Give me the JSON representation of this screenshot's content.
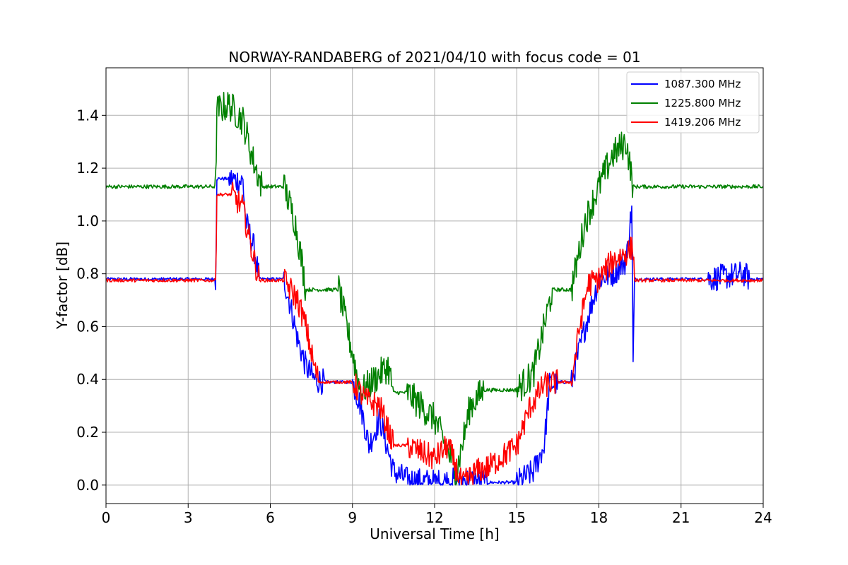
{
  "chart_data": {
    "type": "line",
    "title": "NORWAY-RANDABERG of 2021/04/10 with focus code = 01",
    "xlabel": "Universal Time [h]",
    "ylabel": "Y-factor [dB]",
    "xlim": [
      0,
      24
    ],
    "ylim": [
      -0.07,
      1.58
    ],
    "xticks": [
      0,
      3,
      6,
      9,
      12,
      15,
      18,
      21,
      24
    ],
    "yticks": [
      0.0,
      0.2,
      0.4,
      0.6,
      0.8,
      1.0,
      1.2,
      1.4
    ],
    "ytick_labels": [
      "0.0",
      "0.2",
      "0.4",
      "0.6",
      "0.8",
      "1.0",
      "1.2",
      "1.4"
    ],
    "grid": true,
    "legend_position": "top-right",
    "series": [
      {
        "name": "1087.300 MHz",
        "color": "#0000ff",
        "noise": 0.05,
        "x": [
          0,
          4.0,
          4.05,
          4.5,
          5.0,
          5.1,
          5.4,
          5.6,
          6.5,
          6.8,
          7.0,
          7.3,
          7.6,
          8.0,
          9.0,
          9.3,
          9.6,
          10.0,
          10.5,
          11.0,
          12.0,
          13.0,
          14.0,
          15.0,
          15.6,
          16.0,
          16.2,
          16.5,
          17.0,
          17.5,
          18.0,
          18.5,
          19.0,
          19.2,
          19.25,
          19.3,
          22.0,
          23.3,
          23.5,
          24
        ],
        "y": [
          0.78,
          0.78,
          1.16,
          1.16,
          1.15,
          1.0,
          0.9,
          0.78,
          0.78,
          0.65,
          0.55,
          0.45,
          0.4,
          0.39,
          0.39,
          0.3,
          0.15,
          0.25,
          0.05,
          0.02,
          0.01,
          0.02,
          0.01,
          0.01,
          0.05,
          0.15,
          0.38,
          0.39,
          0.39,
          0.6,
          0.78,
          0.8,
          0.85,
          1.05,
          0.45,
          0.78,
          0.78,
          0.8,
          0.78,
          0.78
        ]
      },
      {
        "name": "1225.800 MHz",
        "color": "#008000",
        "noise": 0.06,
        "x": [
          0,
          4.0,
          4.05,
          4.5,
          5.0,
          5.4,
          5.7,
          6.5,
          6.9,
          7.1,
          7.3,
          7.6,
          8.5,
          9.0,
          9.3,
          10.3,
          10.5,
          11.0,
          12.0,
          12.8,
          13.3,
          13.8,
          15.0,
          15.6,
          16.0,
          16.3,
          17.0,
          17.5,
          18.0,
          18.5,
          19.0,
          19.25,
          19.3,
          20.0,
          24
        ],
        "y": [
          1.13,
          1.13,
          1.42,
          1.44,
          1.38,
          1.22,
          1.13,
          1.13,
          1.0,
          0.88,
          0.74,
          0.74,
          0.74,
          0.5,
          0.35,
          0.45,
          0.35,
          0.35,
          0.25,
          0.05,
          0.3,
          0.36,
          0.36,
          0.42,
          0.6,
          0.74,
          0.74,
          1.0,
          1.13,
          1.25,
          1.3,
          1.13,
          1.13,
          1.13,
          1.13
        ]
      },
      {
        "name": "1419.206 MHz",
        "color": "#ff0000",
        "noise": 0.05,
        "x": [
          0,
          4.0,
          4.05,
          4.6,
          5.0,
          5.3,
          5.6,
          6.5,
          7.0,
          7.3,
          7.6,
          7.8,
          9.0,
          9.5,
          10.0,
          10.5,
          11.0,
          12.0,
          12.5,
          13.0,
          13.5,
          14.0,
          15.0,
          15.5,
          16.0,
          16.5,
          17.0,
          17.3,
          17.6,
          18.0,
          18.5,
          19.0,
          19.25,
          19.3,
          24
        ],
        "y": [
          0.775,
          0.775,
          1.1,
          1.1,
          1.05,
          0.9,
          0.775,
          0.775,
          0.7,
          0.6,
          0.45,
          0.39,
          0.39,
          0.32,
          0.3,
          0.15,
          0.15,
          0.1,
          0.15,
          0.0,
          0.05,
          0.07,
          0.15,
          0.3,
          0.38,
          0.39,
          0.39,
          0.6,
          0.76,
          0.78,
          0.85,
          0.88,
          0.9,
          0.775,
          0.775
        ]
      }
    ]
  }
}
